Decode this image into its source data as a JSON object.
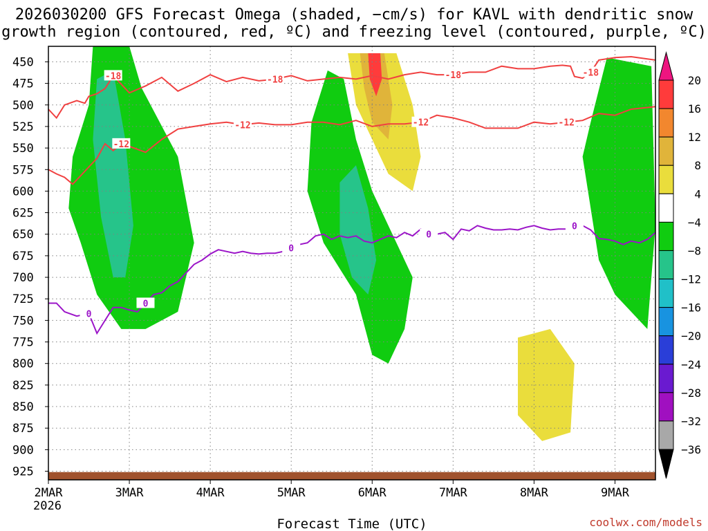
{
  "chart_data": {
    "type": "heatmap",
    "title_line1": "2026030200 GFS Forecast Omega (shaded, −cm/s) for KAVL with dendritic snow",
    "title_line2": "growth region (contoured, red, ºC) and freezing level (contoured, purple, ºC)",
    "xlabel": "Forecast Time (UTC)",
    "credit": "coolwx.com/models",
    "year_label": "2026",
    "x_categories": [
      "2MAR",
      "3MAR",
      "4MAR",
      "5MAR",
      "6MAR",
      "7MAR",
      "8MAR",
      "9MAR"
    ],
    "x_range_days": [
      0,
      7.5
    ],
    "y_levels_hpa": [
      450,
      475,
      500,
      525,
      550,
      575,
      600,
      625,
      650,
      675,
      700,
      725,
      750,
      775,
      800,
      825,
      850,
      875,
      900,
      925
    ],
    "y_range_hpa": [
      432,
      935
    ],
    "colorbar": {
      "labels": [
        "20",
        "16",
        "12",
        "8",
        "4",
        "−4",
        "−8",
        "−12",
        "−16",
        "−20",
        "−24",
        "−28",
        "−32",
        "−36"
      ],
      "bins": [
        {
          "lo": 16,
          "hi": 20,
          "color": "#ff3b3b"
        },
        {
          "lo": 12,
          "hi": 16,
          "color": "#f2872e"
        },
        {
          "lo": 8,
          "hi": 12,
          "color": "#e0b43a"
        },
        {
          "lo": 4,
          "hi": 8,
          "color": "#eadd3c"
        },
        {
          "lo": -4,
          "hi": 4,
          "color": "#ffffff"
        },
        {
          "lo": -8,
          "hi": -4,
          "color": "#10cc10"
        },
        {
          "lo": -12,
          "hi": -8,
          "color": "#26c48a"
        },
        {
          "lo": -16,
          "hi": -12,
          "color": "#20c0c8"
        },
        {
          "lo": -20,
          "hi": -16,
          "color": "#1893e0"
        },
        {
          "lo": -24,
          "hi": -20,
          "color": "#2a3ed8"
        },
        {
          "lo": -28,
          "hi": -24,
          "color": "#6a1ad0"
        },
        {
          "lo": -32,
          "hi": -28,
          "color": "#a010c0"
        },
        {
          "lo": -36,
          "hi": -32,
          "color": "#a8a8a8"
        }
      ],
      "top_cap_color": "#ee1580",
      "bottom_cap_color": "#000000"
    },
    "colors": {
      "dgz_contour": "#f04040",
      "freezing_contour": "#9b14c8",
      "terrain": "#a0522d",
      "grid": "#808080"
    },
    "contours": [
      {
        "name": "-18",
        "label": "-18",
        "color": "#f04040",
        "x": [
          0,
          0.1,
          0.2,
          0.35,
          0.45,
          0.5,
          0.6,
          0.7,
          0.8,
          1.0,
          1.2,
          1.4,
          1.6,
          1.8,
          2.0,
          2.2,
          2.4,
          2.6,
          2.8,
          3.0,
          3.2,
          3.4,
          3.6,
          3.8,
          4.0,
          4.2,
          4.4,
          4.6,
          4.8,
          5.0,
          5.2,
          5.4,
          5.6,
          5.8,
          6.0,
          6.2,
          6.35,
          6.45,
          6.5,
          6.6,
          6.7,
          6.8,
          7.0,
          7.2,
          7.5
        ],
        "y": [
          505,
          515,
          500,
          495,
          498,
          490,
          487,
          481,
          466,
          486,
          478,
          468,
          484,
          475,
          465,
          473,
          468,
          472,
          470,
          466,
          472,
          470,
          468,
          470,
          466,
          470,
          465,
          462,
          465,
          465,
          462,
          462,
          455,
          458,
          458,
          455,
          454,
          455,
          467,
          469,
          462,
          448,
          445,
          444,
          448
        ]
      },
      {
        "name": "-12",
        "label": "-12",
        "color": "#f04040",
        "x": [
          0,
          0.1,
          0.2,
          0.3,
          0.4,
          0.5,
          0.6,
          0.7,
          0.8,
          0.9,
          1.0,
          1.2,
          1.4,
          1.6,
          1.8,
          2.0,
          2.2,
          2.4,
          2.6,
          2.8,
          3.0,
          3.2,
          3.4,
          3.6,
          3.8,
          4.0,
          4.2,
          4.4,
          4.6,
          4.8,
          5.0,
          5.2,
          5.4,
          5.6,
          5.8,
          6.0,
          6.2,
          6.4,
          6.6,
          6.8,
          7.0,
          7.2,
          7.5
        ],
        "y": [
          575,
          580,
          584,
          592,
          582,
          572,
          562,
          545,
          553,
          545,
          548,
          555,
          540,
          528,
          525,
          522,
          520,
          523,
          521,
          523,
          523,
          520,
          520,
          523,
          518,
          525,
          522,
          522,
          520,
          512,
          515,
          520,
          527,
          527,
          527,
          520,
          522,
          520,
          518,
          510,
          512,
          505,
          502
        ]
      },
      {
        "name": "0",
        "label": "0",
        "color": "#9b14c8",
        "x": [
          0,
          0.1,
          0.2,
          0.35,
          0.5,
          0.6,
          0.7,
          0.8,
          0.9,
          1.0,
          1.1,
          1.2,
          1.3,
          1.4,
          1.5,
          1.6,
          1.7,
          1.8,
          1.9,
          2.0,
          2.1,
          2.2,
          2.3,
          2.4,
          2.5,
          2.6,
          2.7,
          2.8,
          2.9,
          3.0,
          3.1,
          3.2,
          3.3,
          3.4,
          3.5,
          3.6,
          3.7,
          3.8,
          3.9,
          4.0,
          4.1,
          4.2,
          4.3,
          4.4,
          4.5,
          4.6,
          4.7,
          4.8,
          4.9,
          5.0,
          5.1,
          5.2,
          5.3,
          5.4,
          5.5,
          5.6,
          5.7,
          5.8,
          5.9,
          6.0,
          6.1,
          6.2,
          6.3,
          6.4,
          6.5,
          6.6,
          6.7,
          6.8,
          6.9,
          7.0,
          7.1,
          7.2,
          7.3,
          7.4,
          7.5
        ],
        "y": [
          730,
          730,
          740,
          745,
          742,
          765,
          750,
          735,
          735,
          738,
          740,
          730,
          720,
          718,
          710,
          705,
          695,
          685,
          680,
          673,
          668,
          670,
          672,
          670,
          672,
          673,
          672,
          672,
          670,
          666,
          662,
          660,
          652,
          650,
          656,
          652,
          654,
          652,
          658,
          660,
          656,
          652,
          654,
          648,
          652,
          644,
          650,
          650,
          648,
          656,
          644,
          646,
          640,
          643,
          645,
          645,
          644,
          645,
          642,
          640,
          643,
          645,
          644,
          644,
          640,
          640,
          645,
          655,
          656,
          658,
          662,
          658,
          660,
          656,
          648
        ]
      }
    ],
    "omega_features": [
      {
        "name": "east-band-green",
        "value": -6
      },
      {
        "name": "mar3-ascent-green",
        "value": -6
      },
      {
        "name": "mar3-core-teal",
        "value": -12
      },
      {
        "name": "mar6-ascent-green",
        "value": -6
      },
      {
        "name": "mar6-core-teal",
        "value": -12
      },
      {
        "name": "mar6-sinking-yellow",
        "value": 6
      },
      {
        "name": "mar6-sinking-orange",
        "value": 10
      },
      {
        "name": "mar6-sinking-core",
        "value": 18
      },
      {
        "name": "mar8-lower-sinking",
        "value": 6
      }
    ]
  }
}
